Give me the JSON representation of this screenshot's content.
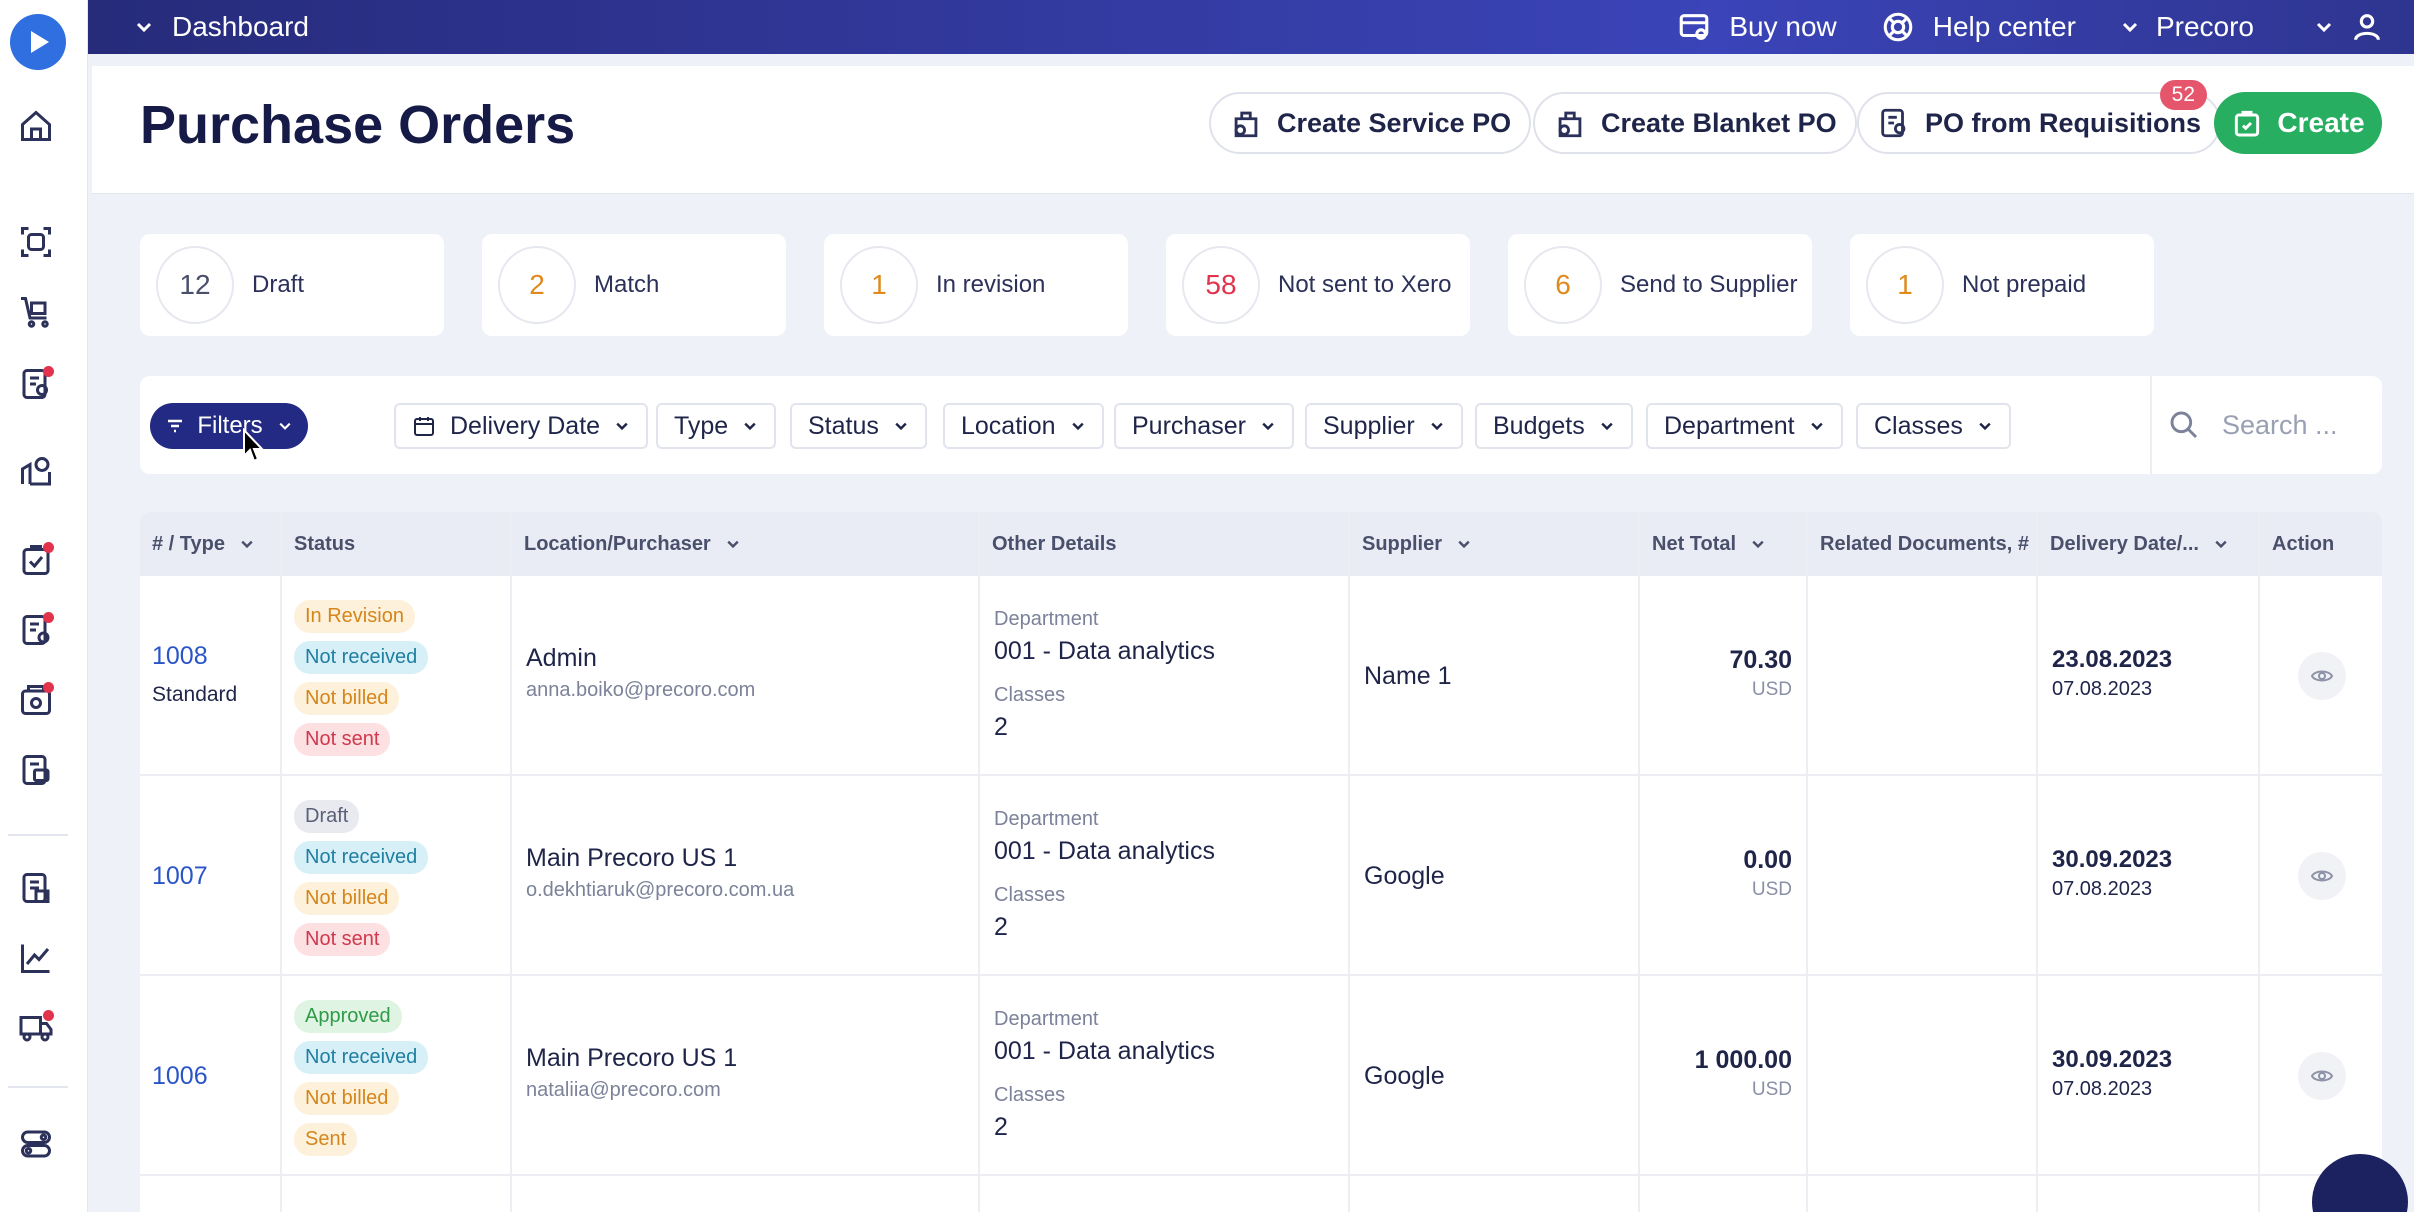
{
  "topbar": {
    "breadcrumb": "Dashboard",
    "buy_now": "Buy now",
    "help_center": "Help center",
    "company": "Precoro"
  },
  "header": {
    "title": "Purchase Orders",
    "create_service_po": "Create Service PO",
    "create_blanket_po": "Create Blanket PO",
    "po_from_requisitions": "PO from Requisitions",
    "requisitions_badge": "52",
    "create": "Create"
  },
  "stats": [
    {
      "count": "12",
      "label": "Draft",
      "color": "#4a506b"
    },
    {
      "count": "2",
      "label": "Match",
      "color": "#e08a1e"
    },
    {
      "count": "1",
      "label": "In revision",
      "color": "#e08a1e"
    },
    {
      "count": "58",
      "label": "Not sent to Xero",
      "color": "#e2334d"
    },
    {
      "count": "6",
      "label": "Send to Supplier",
      "color": "#e08a1e"
    },
    {
      "count": "1",
      "label": "Not prepaid",
      "color": "#e08a1e"
    }
  ],
  "filters": {
    "filters_label": "Filters",
    "chips": [
      "Delivery Date",
      "Type",
      "Status",
      "Location",
      "Purchaser",
      "Supplier",
      "Budgets",
      "Department",
      "Classes"
    ],
    "search_placeholder": "Search ..."
  },
  "table": {
    "headers": [
      "# / Type",
      "Status",
      "Location/Purchaser",
      "Other Details",
      "Supplier",
      "Net Total",
      "Related Documents, #",
      "Delivery Date/...",
      "Action"
    ],
    "rows": [
      {
        "number": "1008",
        "type": "Standard",
        "statuses": [
          {
            "text": "In Revision",
            "kind": "orange"
          },
          {
            "text": "Not received",
            "kind": "blue"
          },
          {
            "text": "Not billed",
            "kind": "orange"
          },
          {
            "text": "Not sent",
            "kind": "red"
          }
        ],
        "location": "Admin",
        "email": "anna.boiko@precoro.com",
        "dept_label": "Department",
        "dept": "001 - Data analytics",
        "classes_label": "Classes",
        "classes": "2",
        "supplier": "Name 1",
        "amount": "70.30",
        "currency": "USD",
        "delivery": "23.08.2023",
        "created": "07.08.2023"
      },
      {
        "number": "1007",
        "type": "",
        "statuses": [
          {
            "text": "Draft",
            "kind": "grey"
          },
          {
            "text": "Not received",
            "kind": "blue"
          },
          {
            "text": "Not billed",
            "kind": "orange"
          },
          {
            "text": "Not sent",
            "kind": "red"
          }
        ],
        "location": "Main Precoro US 1",
        "email": "o.dekhtiaruk@precoro.com.ua",
        "dept_label": "Department",
        "dept": "001 - Data analytics",
        "classes_label": "Classes",
        "classes": "2",
        "supplier": "Google",
        "amount": "0.00",
        "currency": "USD",
        "delivery": "30.09.2023",
        "created": "07.08.2023"
      },
      {
        "number": "1006",
        "type": "",
        "statuses": [
          {
            "text": "Approved",
            "kind": "green"
          },
          {
            "text": "Not received",
            "kind": "blue"
          },
          {
            "text": "Not billed",
            "kind": "orange"
          },
          {
            "text": "Sent",
            "kind": "orange"
          }
        ],
        "location": "Main Precoro US 1",
        "email": "nataliia@precoro.com",
        "dept_label": "Department",
        "dept": "001 - Data analytics",
        "classes_label": "Classes",
        "classes": "2",
        "supplier": "Google",
        "amount": "1 000.00",
        "currency": "USD",
        "delivery": "30.09.2023",
        "created": "07.08.2023"
      }
    ]
  }
}
